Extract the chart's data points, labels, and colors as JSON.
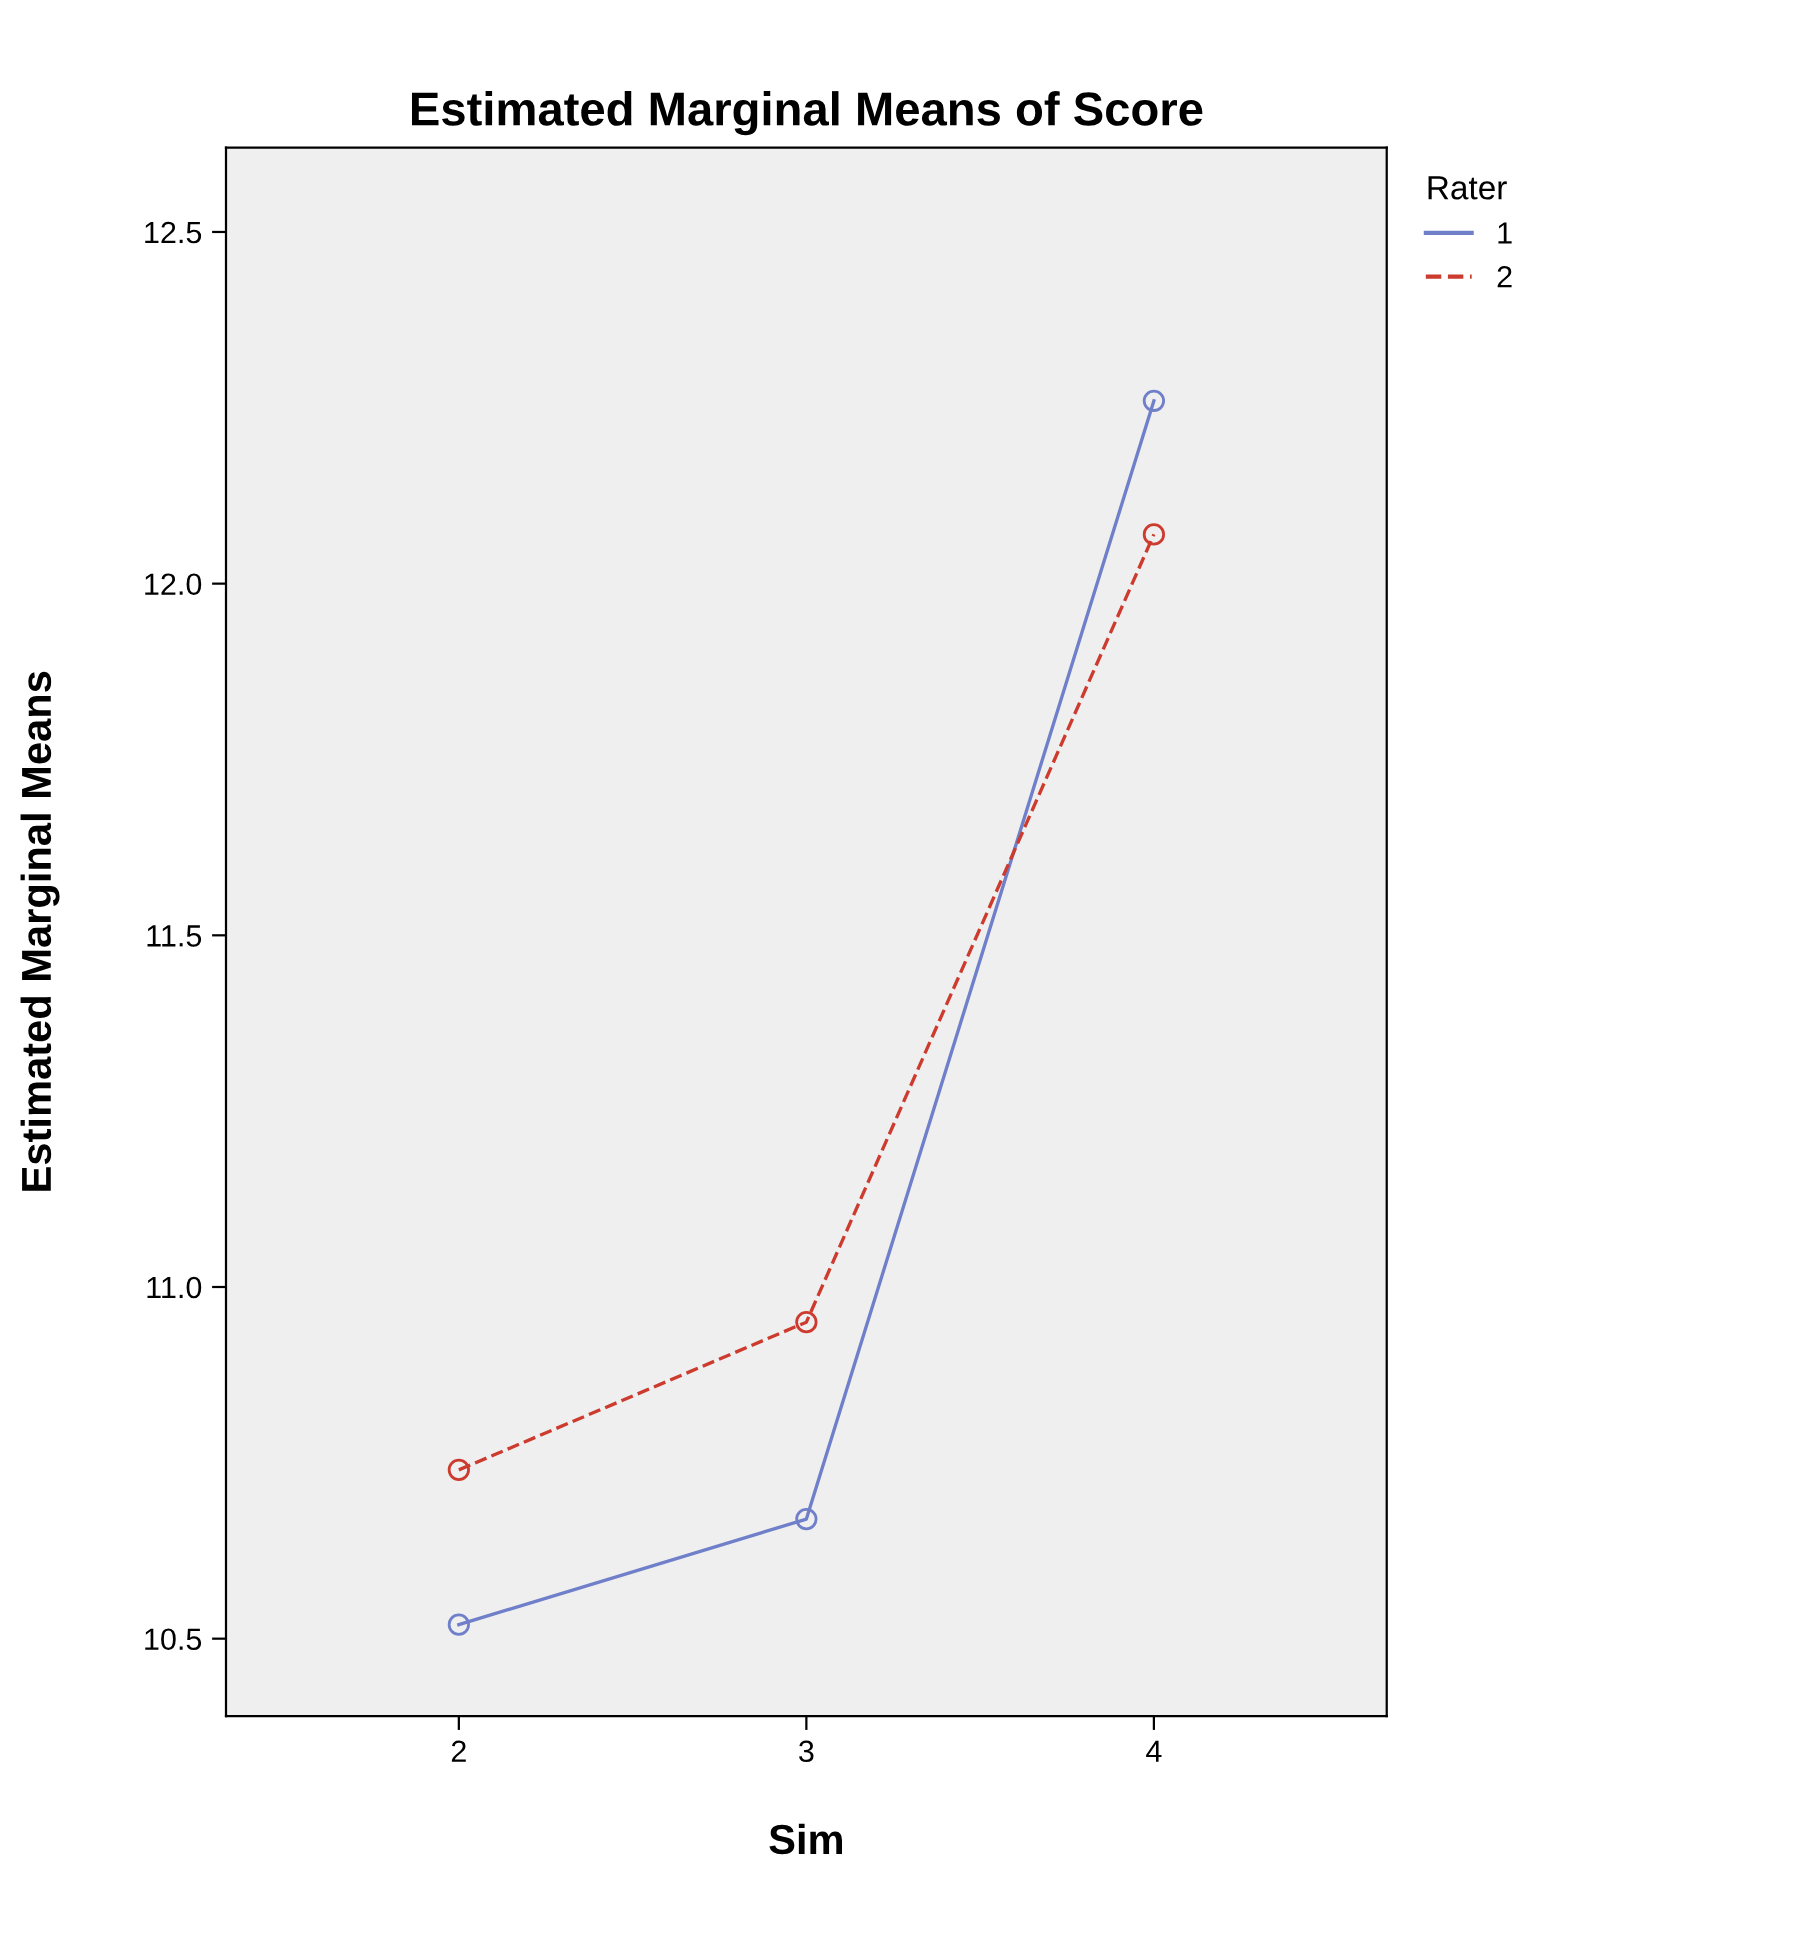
{
  "chart_data": {
    "type": "line",
    "title": "Estimated Marginal Means of Score",
    "xlabel": "Sim",
    "ylabel": "Estimated Marginal Means",
    "legend_title": "Rater",
    "x": [
      2,
      3,
      4
    ],
    "xlim": [
      1.33,
      4.67
    ],
    "xticks": [
      2,
      3,
      4
    ],
    "ylim": [
      10.39,
      12.62
    ],
    "yticks": [
      {
        "value": 10.5,
        "label": "10.5"
      },
      {
        "value": 11.0,
        "label": "11.0"
      },
      {
        "value": 11.5,
        "label": "11.5"
      },
      {
        "value": 12.0,
        "label": "12.0"
      },
      {
        "value": 12.5,
        "label": "12.5"
      }
    ],
    "series": [
      {
        "name": "1",
        "color": "#6f7fc9",
        "values": [
          10.52,
          10.67,
          12.26
        ],
        "line_style": "solid"
      },
      {
        "name": "2",
        "color": "#cc3b2e",
        "values": [
          10.74,
          10.95,
          12.07
        ],
        "line_style": "dashed"
      }
    ],
    "marker": "circle",
    "legend": "top right",
    "grid": false
  }
}
